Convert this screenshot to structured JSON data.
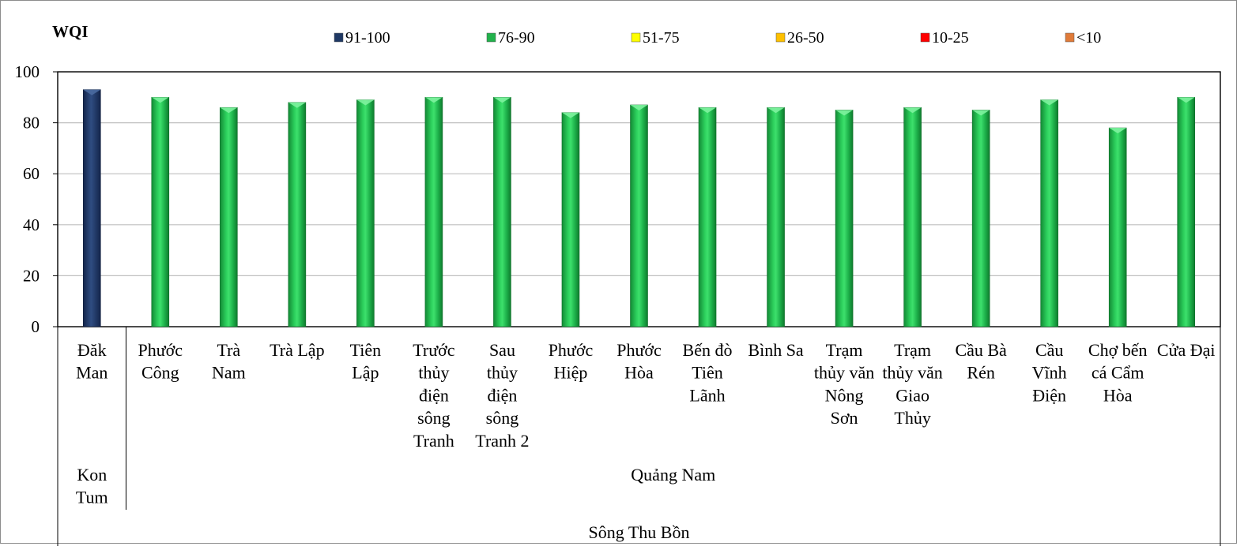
{
  "chart_data": {
    "type": "bar",
    "title": "WQI",
    "ylim": [
      0,
      100
    ],
    "yticks": [
      "0",
      "20",
      "40",
      "60",
      "80",
      "100"
    ],
    "grid": true,
    "legend_position": "top",
    "legend": [
      {
        "label": "91-100",
        "color": "#1f3864"
      },
      {
        "label": "76-90",
        "color": "#22b24c"
      },
      {
        "label": "51-75",
        "color": "#ffff00"
      },
      {
        "label": "26-50",
        "color": "#ffc000"
      },
      {
        "label": "10-25",
        "color": "#ff0000"
      },
      {
        "label": "<10",
        "color": "#e07b39"
      }
    ],
    "categories": [
      {
        "label": "Đăk Man",
        "lines": [
          "Đăk",
          "Man"
        ],
        "value": 93,
        "band": "91-100"
      },
      {
        "label": "Phước Công",
        "lines": [
          "Phước",
          "Công"
        ],
        "value": 90,
        "band": "76-90"
      },
      {
        "label": "Trà Nam",
        "lines": [
          "Trà",
          "Nam"
        ],
        "value": 86,
        "band": "76-90"
      },
      {
        "label": "Trà Lập",
        "lines": [
          "Trà Lập"
        ],
        "value": 88,
        "band": "76-90"
      },
      {
        "label": "Tiên Lập",
        "lines": [
          "Tiên",
          "Lập"
        ],
        "value": 89,
        "band": "76-90"
      },
      {
        "label": "Trước thủy điện sông Tranh",
        "lines": [
          "Trước",
          "thủy",
          "điện",
          "sông",
          "Tranh"
        ],
        "value": 90,
        "band": "76-90"
      },
      {
        "label": "Sau thủy điện sông Tranh 2",
        "lines": [
          "Sau",
          "thủy",
          "điện",
          "sông",
          "Tranh 2"
        ],
        "value": 90,
        "band": "76-90"
      },
      {
        "label": "Phước Hiệp",
        "lines": [
          "Phước",
          "Hiệp"
        ],
        "value": 84,
        "band": "76-90"
      },
      {
        "label": "Phước Hòa",
        "lines": [
          "Phước",
          "Hòa"
        ],
        "value": 87,
        "band": "76-90"
      },
      {
        "label": "Bến đò Tiên Lãnh",
        "lines": [
          "Bến đò",
          "Tiên",
          "Lãnh"
        ],
        "value": 86,
        "band": "76-90"
      },
      {
        "label": "Bình Sa",
        "lines": [
          "Bình Sa"
        ],
        "value": 86,
        "band": "76-90"
      },
      {
        "label": "Trạm thủy văn Nông Sơn",
        "lines": [
          "Trạm",
          "thủy văn",
          "Nông",
          "Sơn"
        ],
        "value": 85,
        "band": "76-90"
      },
      {
        "label": "Trạm thủy văn Giao Thủy",
        "lines": [
          "Trạm",
          "thủy văn",
          "Giao",
          "Thủy"
        ],
        "value": 86,
        "band": "76-90"
      },
      {
        "label": "Cầu Bà Rén",
        "lines": [
          "Cầu Bà",
          "Rén"
        ],
        "value": 85,
        "band": "76-90"
      },
      {
        "label": "Cầu Vĩnh Điện",
        "lines": [
          "Cầu",
          "Vĩnh",
          "Điện"
        ],
        "value": 89,
        "band": "76-90"
      },
      {
        "label": "Chợ bến cá Cẩm Hòa",
        "lines": [
          "Chợ bến",
          "cá Cẩm",
          "Hòa"
        ],
        "value": 78,
        "band": "76-90"
      },
      {
        "label": "Cửa Đại",
        "lines": [
          "Cửa Đại"
        ],
        "value": 90,
        "band": "76-90"
      }
    ],
    "groups": [
      {
        "label": "Kon Tum",
        "lines": [
          "Kon",
          "Tum"
        ],
        "start": 0,
        "end": 0
      },
      {
        "label": "Quảng Nam",
        "lines": [
          "Quảng Nam"
        ],
        "start": 1,
        "end": 16
      }
    ],
    "river": "Sông Thu Bồn"
  }
}
